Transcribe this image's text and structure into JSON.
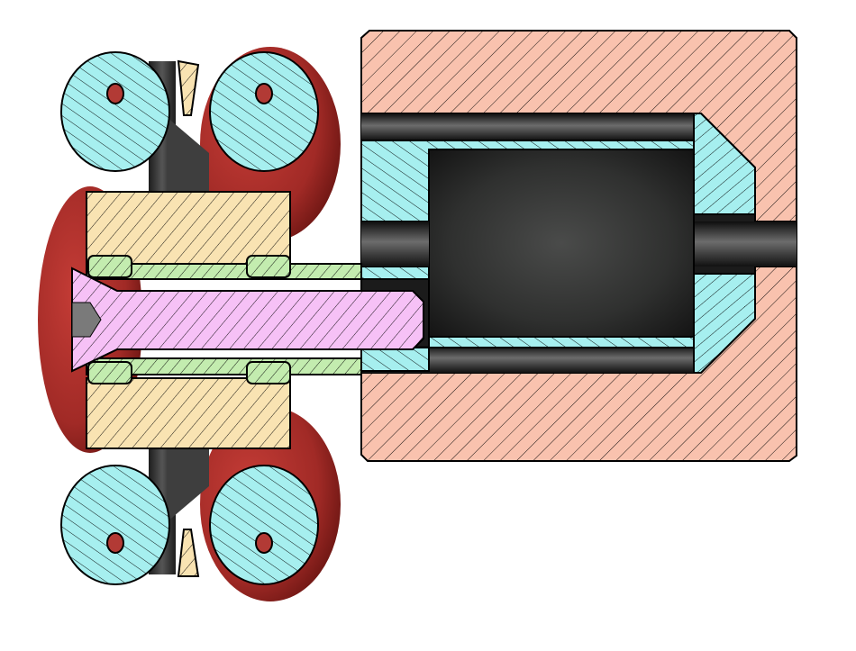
{
  "colors": {
    "background": "#ffffff",
    "housing": "#f9c2ae",
    "cyan_part": "#a6efef",
    "spacer_green": "#c3ecaf",
    "block_yellow": "#f9e3b2",
    "screw_pink": "#f6c1f6",
    "bearing_red": "#b8312d",
    "cavity_dark": "#2d2e2d",
    "hole_dark": "#3a3a3a",
    "outline": "#000000"
  },
  "parts": {
    "housing": "housing-section",
    "cup": "cyan-cup-section",
    "screw": "countersunk-screw-section",
    "spacer": "green-spacer-section",
    "blocks": "yellow-block-section",
    "rollers": "cyan-roller-section",
    "bearings": "red-bearing-shape",
    "wedges": "yellow-wedge-section"
  }
}
